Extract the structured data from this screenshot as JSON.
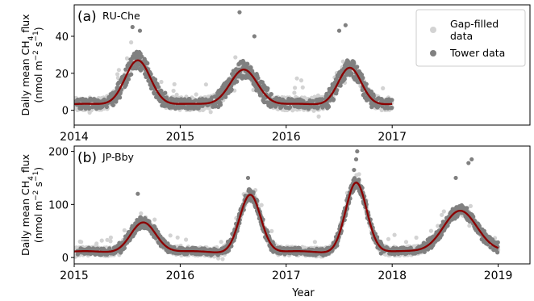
{
  "figure": {
    "xlabel": "Year",
    "colors": {
      "gapfilled": "#d3d3d3",
      "tower": "#808080",
      "fit": "#8b0000",
      "frame": "#000000"
    }
  },
  "chart_data": [
    {
      "type": "scatter",
      "panel_label": "(a)",
      "site": "RU-Che",
      "ylabel_line1": "Daily mean CH$_4$ flux",
      "ylabel_line2": "(nmol m$^{-2}$ s$^{-1}$)",
      "xlim": [
        2014.0,
        2018.3
      ],
      "ylim": [
        -8,
        57
      ],
      "xticks": [
        2014,
        2015,
        2016,
        2017
      ],
      "yticks": [
        0,
        20,
        40
      ],
      "legend": {
        "placement": "top-right",
        "entries": [
          {
            "label": "Gap-filled\ndata",
            "color": "#d3d3d3"
          },
          {
            "label": "Tower data",
            "color": "#808080"
          }
        ]
      },
      "data_start": 2014.0,
      "data_end": 2017.0,
      "baseline": 3.5,
      "peaks": [
        {
          "year": 2014.6,
          "height": 25,
          "sigma": 0.12
        },
        {
          "year": 2015.6,
          "height": 20,
          "sigma": 0.13
        },
        {
          "year": 2016.6,
          "height": 21,
          "sigma": 0.11
        }
      ],
      "winter_min": 2,
      "tower_spread": 6,
      "outliers": [
        {
          "x": 2015.56,
          "y": 53
        },
        {
          "x": 2014.55,
          "y": 45
        },
        {
          "x": 2014.62,
          "y": 43
        },
        {
          "x": 2016.56,
          "y": 46
        },
        {
          "x": 2015.7,
          "y": 40
        },
        {
          "x": 2016.5,
          "y": 43
        }
      ]
    },
    {
      "type": "scatter",
      "panel_label": "(b)",
      "site": "JP-Bby",
      "ylabel_line1": "Daily mean CH$_4$ flux",
      "ylabel_line2": "(nmol m$^{-2}$ s$^{-1}$)",
      "xlim": [
        2015.0,
        2019.3
      ],
      "ylim": [
        -12,
        210
      ],
      "xticks": [
        2015,
        2016,
        2017,
        2018,
        2019
      ],
      "yticks": [
        0,
        100,
        200
      ],
      "data_start": 2015.0,
      "data_end": 2019.0,
      "baseline": 12,
      "peaks": [
        {
          "year": 2015.65,
          "height": 60,
          "sigma": 0.12
        },
        {
          "year": 2016.66,
          "height": 112,
          "sigma": 0.1
        },
        {
          "year": 2017.66,
          "height": 135,
          "sigma": 0.1
        },
        {
          "year": 2018.64,
          "height": 82,
          "sigma": 0.16
        }
      ],
      "winter_min": 6,
      "tower_spread": 14,
      "outliers": [
        {
          "x": 2017.67,
          "y": 200
        },
        {
          "x": 2017.66,
          "y": 185
        },
        {
          "x": 2018.75,
          "y": 185
        },
        {
          "x": 2018.72,
          "y": 178
        },
        {
          "x": 2015.6,
          "y": 120
        },
        {
          "x": 2016.64,
          "y": 150
        },
        {
          "x": 2017.64,
          "y": 165
        },
        {
          "x": 2018.6,
          "y": 150
        }
      ]
    }
  ]
}
